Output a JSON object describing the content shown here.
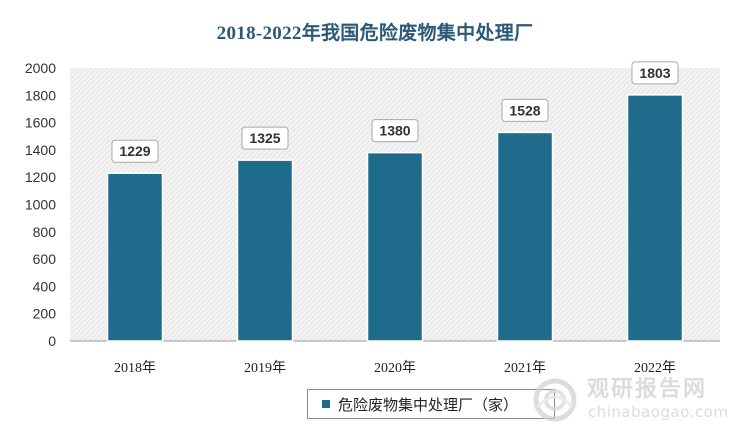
{
  "chart_data": {
    "type": "bar",
    "title": "2018-2022年我国危险废物集中处理厂",
    "categories": [
      "2018年",
      "2019年",
      "2020年",
      "2021年",
      "2022年"
    ],
    "series": [
      {
        "name": "危险废物集中处理厂（家）",
        "values": [
          1229,
          1325,
          1380,
          1528,
          1803
        ],
        "color": "#1f6b8c"
      }
    ],
    "ylim": [
      0,
      2000
    ],
    "yticks": [
      0,
      200,
      400,
      600,
      800,
      1000,
      1200,
      1400,
      1600,
      1800,
      2000
    ],
    "grid": false,
    "legend_position": "bottom",
    "plot_background": "#f1f1f1"
  },
  "watermark": {
    "name_cn": "观研报告网",
    "url": "chinabaogao.com"
  }
}
